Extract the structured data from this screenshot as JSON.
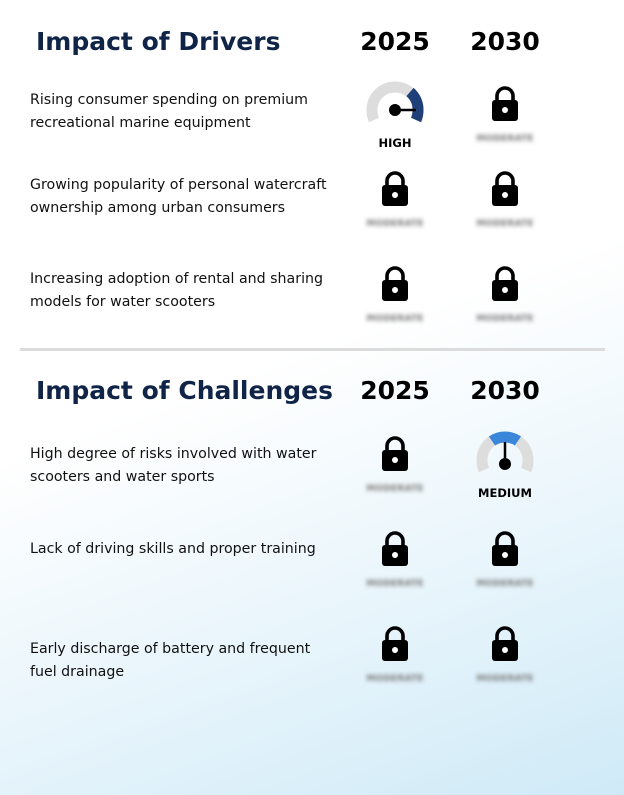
{
  "drivers": {
    "title": "Impact of Drivers",
    "year_1": "2025",
    "year_2": "2030",
    "rows": [
      {
        "text": "Rising consumer spending on premium recreational marine equipment",
        "y2025": {
          "type": "gauge",
          "level": "HIGH",
          "label": "HIGH"
        },
        "y2030": {
          "type": "lock",
          "label": "MODERATE"
        }
      },
      {
        "text": "Growing popularity of personal watercraft ownership among urban consumers",
        "y2025": {
          "type": "lock",
          "label": "MODERATE"
        },
        "y2030": {
          "type": "lock",
          "label": "MODERATE"
        }
      },
      {
        "text": "Increasing adoption of rental and sharing models for water scooters",
        "y2025": {
          "type": "lock",
          "label": "MODERATE"
        },
        "y2030": {
          "type": "lock",
          "label": "MODERATE"
        }
      }
    ]
  },
  "challenges": {
    "title": "Impact of Challenges",
    "year_1": "2025",
    "year_2": "2030",
    "rows": [
      {
        "text": "High degree of risks involved with water scooters and water sports",
        "y2025": {
          "type": "lock",
          "label": "MODERATE"
        },
        "y2030": {
          "type": "gauge",
          "level": "MEDIUM",
          "label": "MEDIUM"
        }
      },
      {
        "text": "Lack of driving skills and proper training",
        "y2025": {
          "type": "lock",
          "label": "MODERATE"
        },
        "y2030": {
          "type": "lock",
          "label": "MODERATE"
        }
      },
      {
        "text": "Early discharge of battery and frequent fuel drainage",
        "y2025": {
          "type": "lock",
          "label": "MODERATE"
        },
        "y2030": {
          "type": "lock",
          "label": "MODERATE"
        }
      }
    ]
  },
  "colors": {
    "title": "#0f2447",
    "gauge_high": "#1f3f78",
    "gauge_medium": "#3a86d8",
    "gauge_track": "#dddddd",
    "lock": "#000000"
  },
  "icons": {
    "lock": "lock-icon",
    "gauge_high": "gauge-high-icon",
    "gauge_medium": "gauge-medium-icon"
  }
}
